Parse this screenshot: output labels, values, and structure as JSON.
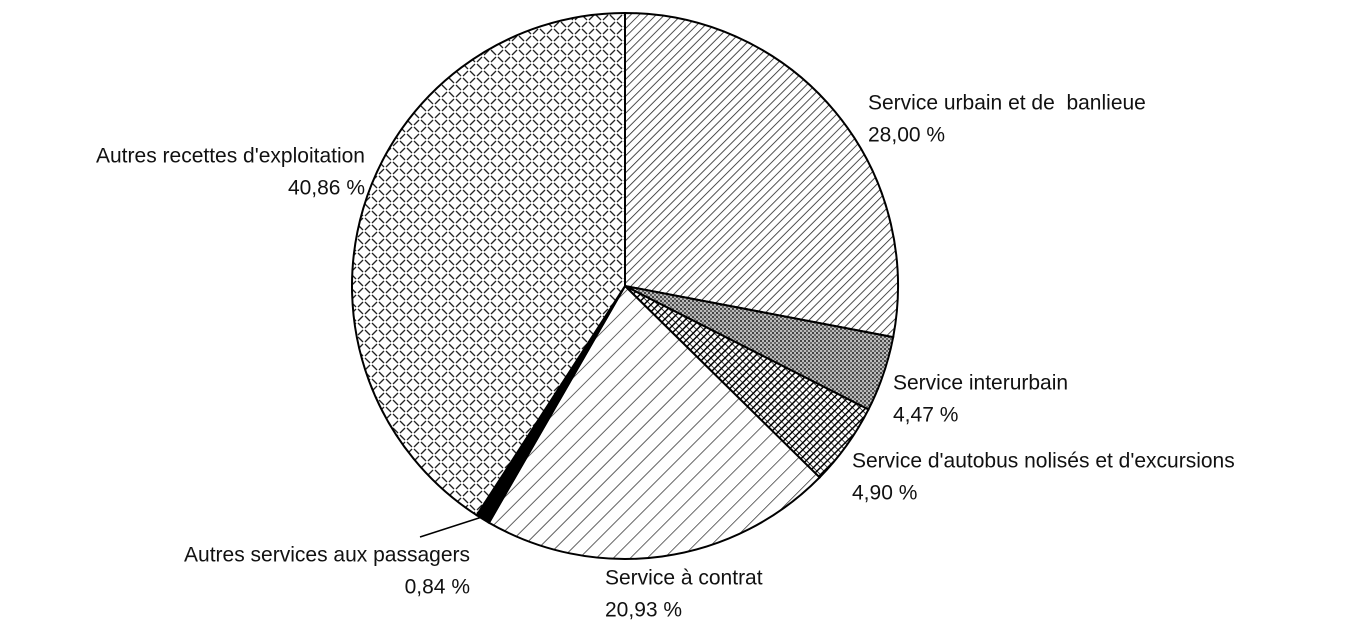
{
  "chart_data": {
    "type": "pie",
    "categories": [
      "Service urbain et de  banlieue",
      "Service interurbain",
      "Service d'autobus nolisés et d'excursions",
      "Service à contrat",
      "Autres services aux passagers",
      "Autres recettes d'exploitation"
    ],
    "values": [
      28.0,
      4.47,
      4.9,
      20.93,
      0.84,
      40.86
    ],
    "value_labels": [
      "28,00 %",
      "4,47 %",
      "4,90 %",
      "20,93 %",
      "0,84 %",
      "40,86 %"
    ]
  }
}
